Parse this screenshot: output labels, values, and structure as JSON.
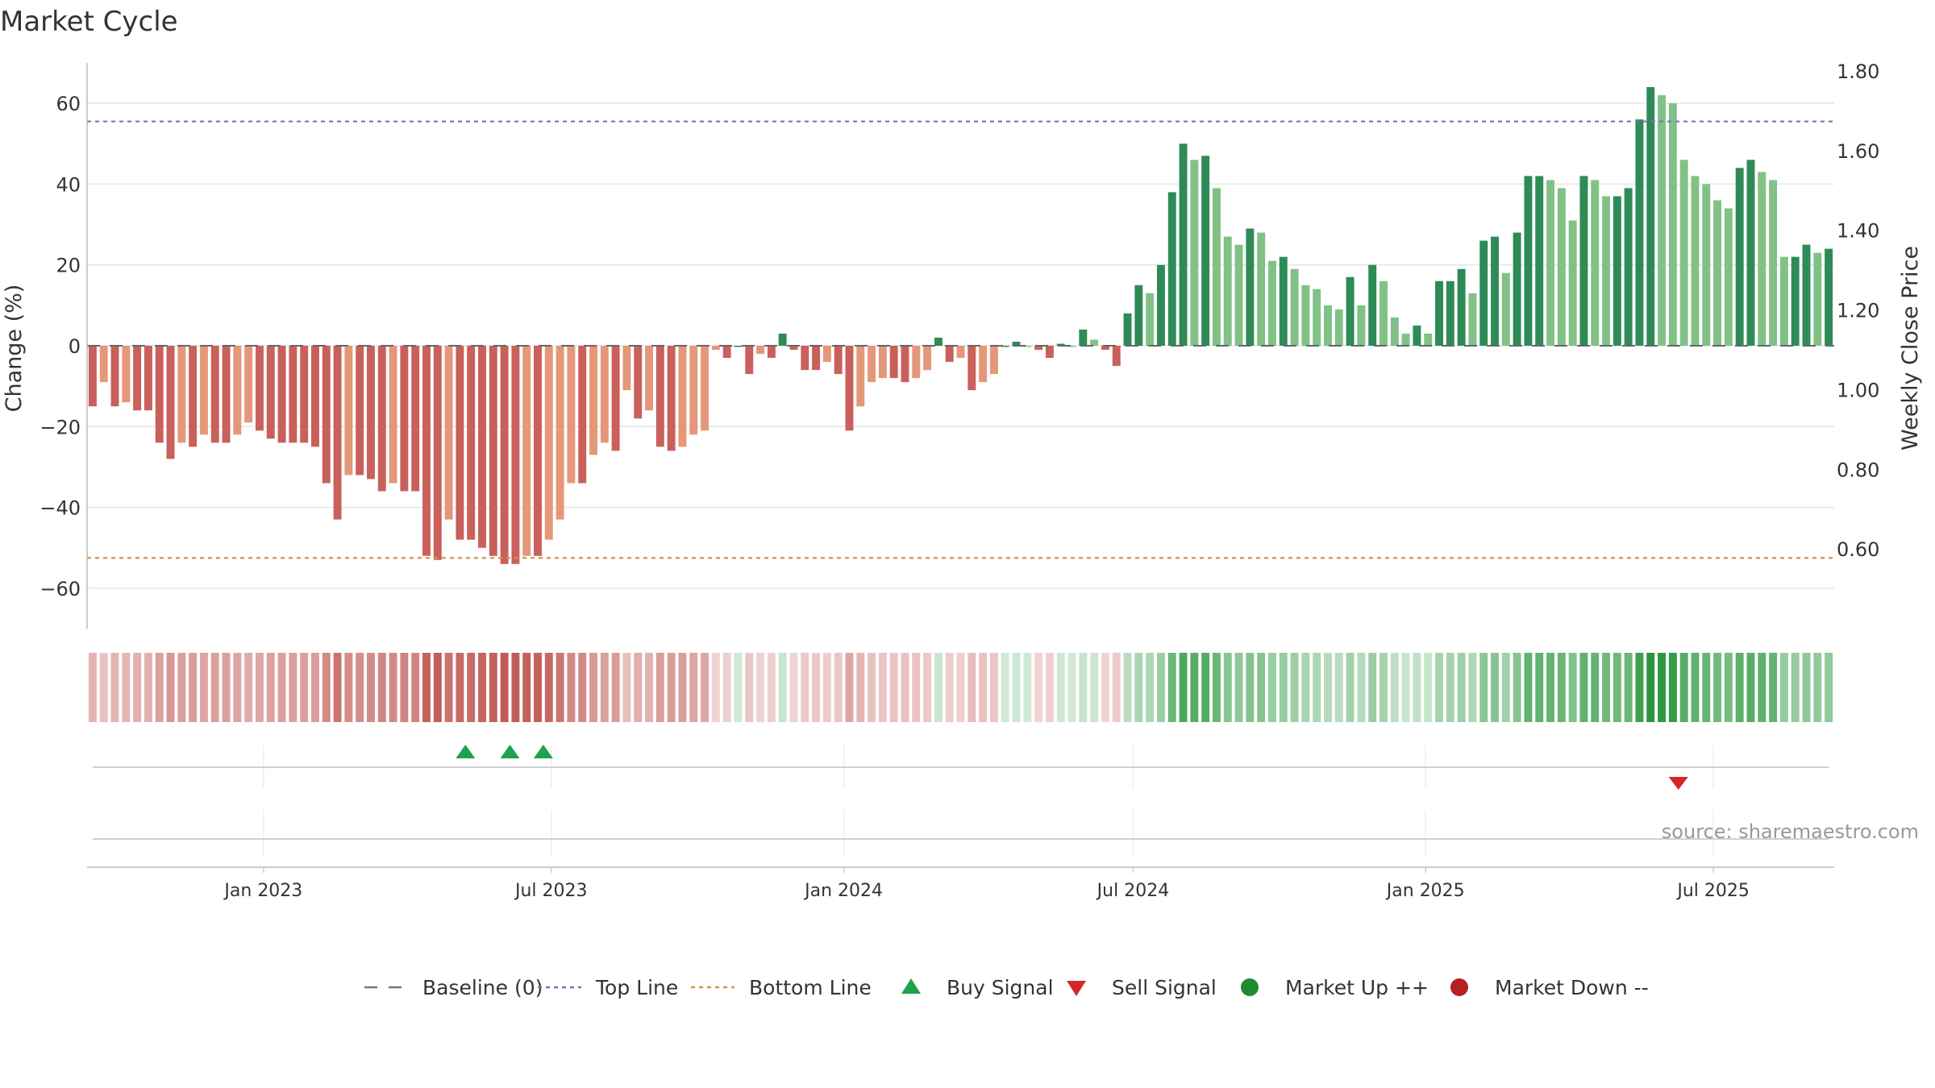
{
  "chart_data": {
    "type": "bar",
    "title": "Market Cycle",
    "ylabel_left": "Change (%)",
    "ylabel_right": "Weekly Close Price",
    "source": "source: sharemaestro.com",
    "ylim_left": [
      -70,
      70
    ],
    "ylim_right": [
      0.4,
      1.82
    ],
    "yticks_left": [
      "60",
      "40",
      "20",
      "0",
      "−20",
      "−40",
      "−60"
    ],
    "yticks_left_values": [
      60,
      40,
      20,
      0,
      -20,
      -40,
      -60
    ],
    "yticks_right": [
      "1.80",
      "1.60",
      "1.40",
      "1.20",
      "1.00",
      "0.80",
      "0.60"
    ],
    "yticks_right_values": [
      1.8,
      1.6,
      1.4,
      1.2,
      1.0,
      0.8,
      0.6
    ],
    "x_start": "2022-09-12",
    "x_end": "2025-09-15",
    "xticks": [
      {
        "date": "2023-01-01",
        "label": "Jan 2023"
      },
      {
        "date": "2023-07-01",
        "label": "Jul 2023"
      },
      {
        "date": "2024-01-01",
        "label": "Jan 2024"
      },
      {
        "date": "2024-07-01",
        "label": "Jul 2024"
      },
      {
        "date": "2025-01-01",
        "label": "Jan 2025"
      },
      {
        "date": "2025-07-01",
        "label": "Jul 2025"
      }
    ],
    "top_line": 55.5,
    "bottom_line": -52.5,
    "baseline": 0,
    "weekly_change_pct": [
      -15,
      -9,
      -15,
      -14,
      -16,
      -16,
      -24,
      -28,
      -24,
      -25,
      -22,
      -24,
      -24,
      -22,
      -19,
      -21,
      -23,
      -24,
      -24,
      -24,
      -25,
      -34,
      -43,
      -32,
      -32,
      -33,
      -36,
      -34,
      -36,
      -36,
      -52,
      -53,
      -43,
      -48,
      -48,
      -50,
      -52,
      -54,
      -54,
      -52,
      -52,
      -48,
      -43,
      -34,
      -34,
      -27,
      -24,
      -26,
      -11,
      -18,
      -16,
      -25,
      -26,
      -25,
      -22,
      -21,
      -1,
      -3,
      0,
      -7,
      -2,
      -3,
      3,
      -1,
      -6,
      -6,
      -4,
      -7,
      -21,
      -15,
      -9,
      -8,
      -8,
      -9,
      -8,
      -6,
      2,
      -4,
      -3,
      -11,
      -9,
      -7,
      0,
      1,
      0,
      -1,
      -3,
      0.5,
      0,
      4,
      1.5,
      -1,
      -5,
      8,
      15,
      13,
      20,
      38,
      50,
      46,
      47,
      39,
      27,
      25,
      29,
      28,
      21,
      22,
      19,
      15,
      14,
      10,
      9,
      17,
      10,
      20,
      16,
      7,
      3,
      5,
      3,
      16,
      16,
      19,
      13,
      26,
      27,
      18,
      28,
      42,
      42,
      41,
      39,
      31,
      42,
      41,
      37,
      37,
      39,
      56,
      64,
      62,
      60,
      46,
      42,
      40,
      36,
      34,
      44,
      46,
      43,
      41,
      22,
      22,
      25,
      23,
      24
    ],
    "signals": {
      "buy": [
        "2023-05-08",
        "2023-06-05",
        "2023-06-26"
      ],
      "sell": [
        "2025-06-09"
      ]
    },
    "legend": [
      {
        "key": "baseline",
        "label": "Baseline (0)",
        "color": "#777777"
      },
      {
        "key": "top",
        "label": "Top Line",
        "color": "#9467bd"
      },
      {
        "key": "bottom",
        "label": "Bottom Line",
        "color": "#d8924a"
      },
      {
        "key": "buy",
        "label": "Buy Signal",
        "color": "#1ea34a"
      },
      {
        "key": "sell",
        "label": "Sell Signal",
        "color": "#d62728"
      },
      {
        "key": "up",
        "label": "Market Up ++",
        "color": "#1f8a2e"
      },
      {
        "key": "down",
        "label": "Market Down --",
        "color": "#b22222"
      }
    ],
    "colors": {
      "neg_dark": "#c9605b",
      "neg_light": "#e5977a",
      "pos_dark": "#2e8b57",
      "pos_light": "#82c186",
      "grid": "#e6e6e6"
    }
  }
}
